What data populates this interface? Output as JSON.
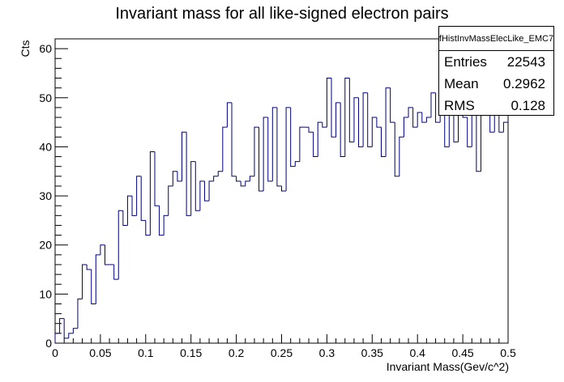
{
  "chart_data": {
    "type": "bar",
    "style": "step-histogram",
    "title": "Invariant mass for all like-signed electron pairs",
    "xlabel": "Invariant Mass(Gev/c^2)",
    "ylabel": "Cts",
    "xlim": [
      0,
      0.5
    ],
    "ylim": [
      0,
      62
    ],
    "xticks": [
      "0",
      "0.05",
      "0.1",
      "0.15",
      "0.2",
      "0.25",
      "0.3",
      "0.35",
      "0.4",
      "0.45",
      "0.5"
    ],
    "yticks": [
      "0",
      "10",
      "20",
      "30",
      "40",
      "50",
      "60"
    ],
    "bin_width": 0.005,
    "values": [
      2,
      5,
      1,
      2,
      3,
      9,
      16,
      15,
      8,
      18,
      20,
      16,
      16,
      13,
      27,
      24,
      30,
      26,
      34,
      25,
      22,
      39,
      28,
      22,
      26,
      32,
      35,
      33,
      43,
      26,
      37,
      27,
      33,
      29,
      33,
      34,
      35,
      44,
      49,
      34,
      33,
      32,
      33,
      34,
      44,
      31,
      46,
      33,
      48,
      32,
      31,
      48,
      36,
      37,
      44,
      44,
      43,
      38,
      45,
      44,
      54,
      42,
      49,
      38,
      54,
      41,
      50,
      40,
      51,
      40,
      46,
      44,
      38,
      52,
      45,
      34,
      42,
      46,
      48,
      44,
      47,
      45,
      46,
      51,
      45,
      55,
      40,
      53,
      41,
      51,
      46,
      40,
      59,
      35,
      53,
      47,
      43,
      51,
      43,
      45
    ],
    "line_color": "#000080",
    "grid": false,
    "legend": "top-right"
  },
  "stats_box": {
    "title": "fHistInvMassElecLike_EMC7",
    "rows": [
      {
        "label": "Entries",
        "value": "22543"
      },
      {
        "label": "Mean",
        "value": "0.2962"
      },
      {
        "label": "RMS",
        "value": "0.128"
      }
    ]
  }
}
